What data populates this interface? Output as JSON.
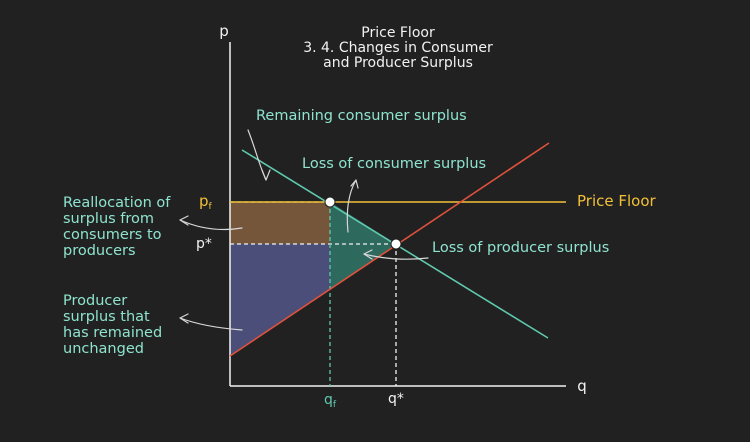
{
  "title": {
    "line1": "Price Floor",
    "line2": "3. 4. Changes in Consumer",
    "line3": "and Producer Surplus"
  },
  "axes": {
    "y_label": "p",
    "x_label": "q"
  },
  "ticks": {
    "pf_main": "p",
    "pf_sub": "f",
    "pstar": "p*",
    "qf_main": "q",
    "qf_sub": "f",
    "qstar": "q*"
  },
  "labels": {
    "price_floor": "Price Floor",
    "remaining_cs": "Remaining consumer surplus",
    "loss_cs": "Loss of consumer surplus",
    "loss_ps": "Loss of producer surplus",
    "reallocation": [
      "Reallocation of",
      "surplus from",
      "consumers to",
      "producers"
    ],
    "ps_unchanged": [
      "Producer",
      "surplus that",
      "has remained",
      "unchanged"
    ]
  },
  "colors": {
    "background": "#212121",
    "demand": "#5fc9ad",
    "supply": "#e0523c",
    "price_floor": "#f2c038",
    "annotation": "#8ee3cf",
    "reallocation_area": "#7a5a3c",
    "producer_area": "#4a4e78",
    "loss_area": "#2f6e62"
  },
  "icons": [
    "curved-arrow-icon"
  ]
}
